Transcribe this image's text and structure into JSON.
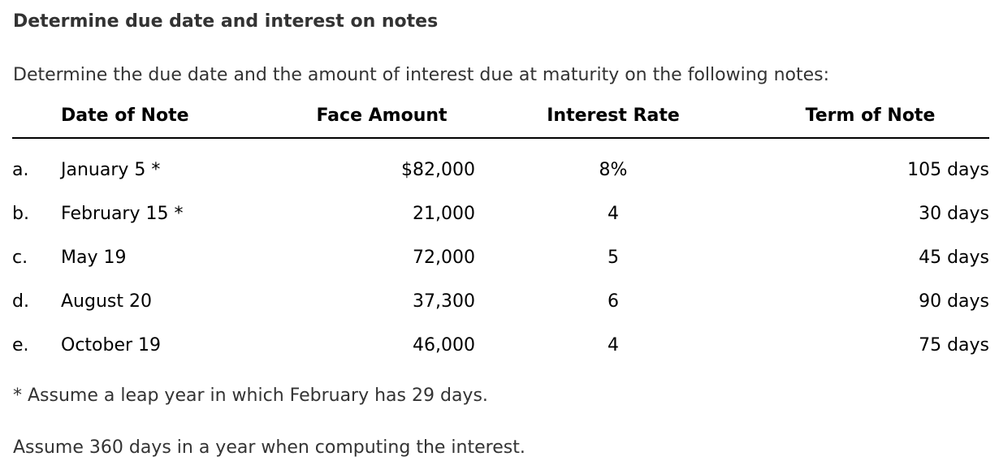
{
  "page": {
    "title": "Determine due date and interest on notes",
    "intro": "Determine the due date and the amount of interest due at maturity on the following notes:",
    "footnote": "* Assume a leap year in which February has 29 days.",
    "assumption": "Assume 360 days in a year when computing the interest."
  },
  "table": {
    "headers": {
      "date": "Date of Note",
      "face": "Face Amount",
      "rate": "Interest Rate",
      "term": "Term of Note"
    },
    "rows": [
      {
        "letter": "a.",
        "date": "January 5 *",
        "face": "$82,000",
        "rate": "8%",
        "term": "105 days"
      },
      {
        "letter": "b.",
        "date": "February 15 *",
        "face": "21,000",
        "rate": "4",
        "term": "30 days"
      },
      {
        "letter": "c.",
        "date": "May 19",
        "face": "72,000",
        "rate": "5",
        "term": "45 days"
      },
      {
        "letter": "d.",
        "date": "August 20",
        "face": "37,300",
        "rate": "6",
        "term": "90 days"
      },
      {
        "letter": "e.",
        "date": "October 19",
        "face": "46,000",
        "rate": "4",
        "term": "75 days"
      }
    ]
  },
  "colors": {
    "background": "#ffffff",
    "body_text": "#333333",
    "table_text": "#000000",
    "header_rule": "#000000"
  }
}
